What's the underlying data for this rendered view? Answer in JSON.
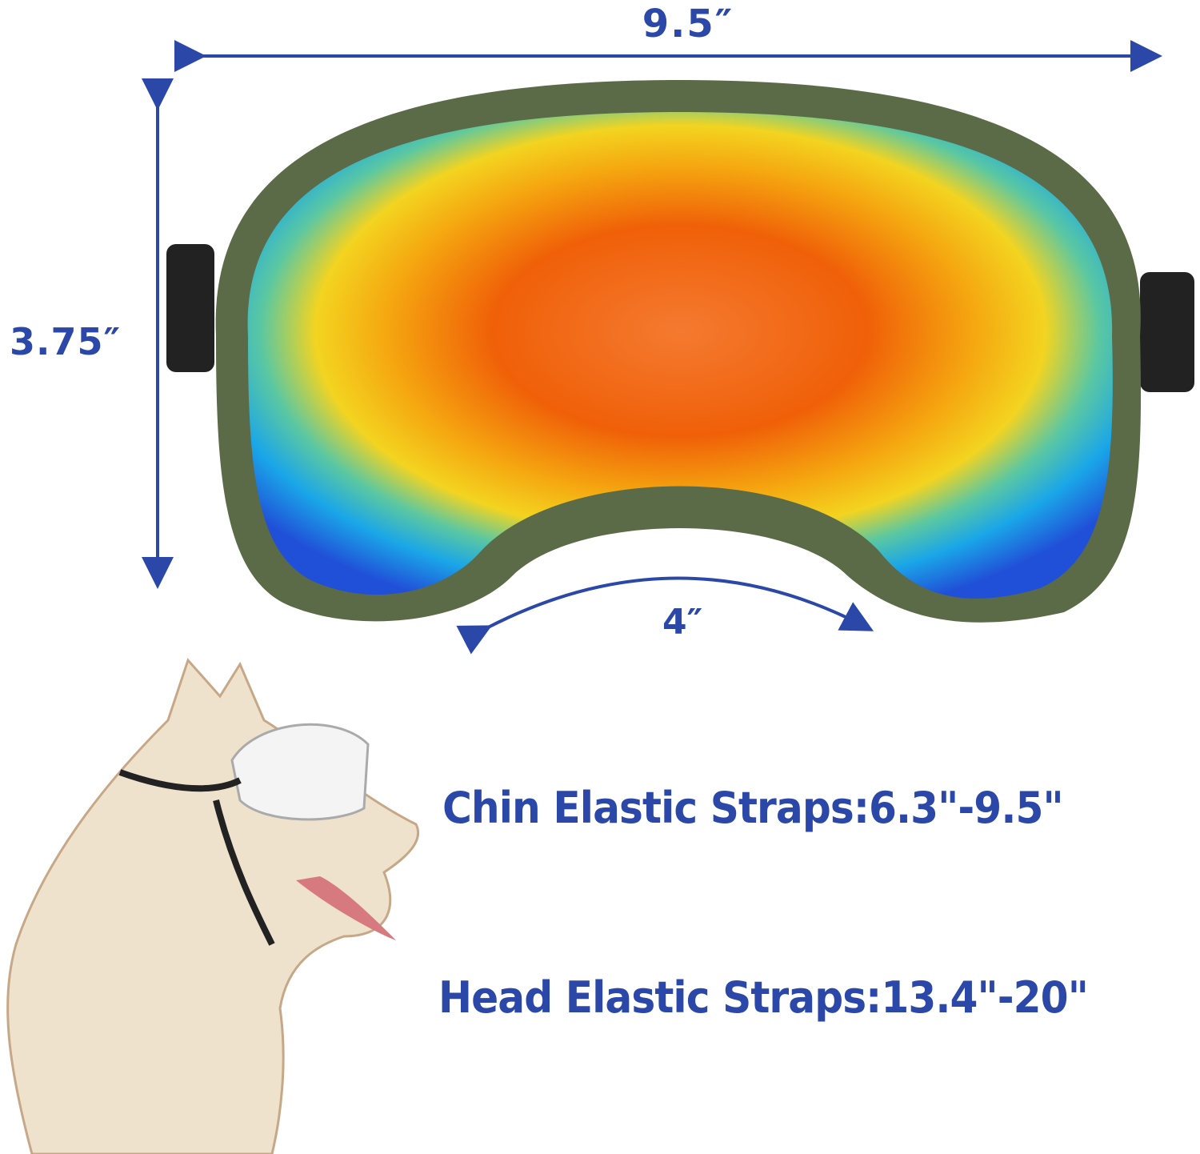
{
  "dimensions": {
    "width_label": "9.5″",
    "height_label": "3.75″",
    "nose_bridge_label": "4″"
  },
  "straps": {
    "chin": "Chin Elastic Straps:6.3\"-9.5\"",
    "head": "Head Elastic Straps:13.4\"-20\""
  },
  "colors": {
    "text_blue": "#2b48a8",
    "frame_green": "#5b6a47",
    "lens_center": "#f06a10",
    "lens_edge": "#1e78e8"
  }
}
